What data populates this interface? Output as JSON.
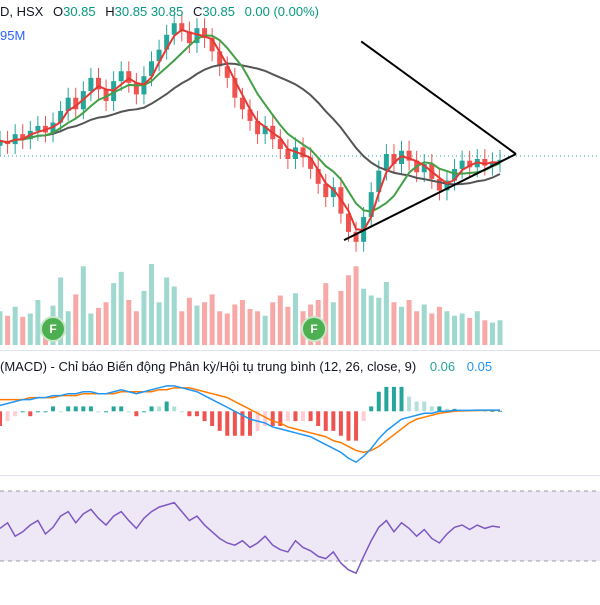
{
  "header": {
    "symbol_tail": "D, HSX",
    "open_label": "O",
    "open": "30.85",
    "high_label": "H",
    "high": "30.85",
    "low_value_text": "30.85",
    "close_label": "C",
    "close": "30.85",
    "change": "0.00 (0.00%)",
    "volume_tail": "95M"
  },
  "macd": {
    "title": "(MACD) - Chỉ báo Biến động Phân kỳ/Hội tụ trung bình (12, 26, close, 9)",
    "value1": "0.06",
    "value2": "0.05"
  },
  "badges": {
    "label": "F"
  },
  "colors": {
    "up": "#26a69a",
    "down": "#ef5350",
    "ma_fast": "#e53935",
    "ma_mid": "#43a047",
    "ma_slow": "#555555",
    "macd_line": "#2196f3",
    "signal_line": "#ff7b00",
    "rsi": "#7e57c2",
    "rsi_band": "#ede7f6",
    "trendline": "#000000"
  },
  "chart_data": {
    "type": "candlestick",
    "close": [
      32.0,
      31.8,
      32.4,
      32.1,
      32.6,
      32.9,
      32.5,
      33.1,
      33.8,
      34.6,
      33.9,
      35.0,
      35.8,
      35.1,
      34.4,
      35.6,
      36.2,
      35.5,
      34.8,
      35.9,
      36.8,
      37.5,
      38.4,
      39.1,
      38.6,
      37.9,
      38.8,
      38.2,
      37.4,
      36.5,
      35.8,
      34.6,
      33.9,
      33.2,
      32.4,
      32.9,
      32.1,
      31.5,
      30.9,
      31.6,
      31.0,
      30.3,
      29.4,
      28.6,
      29.2,
      27.6,
      26.5,
      25.9,
      27.4,
      28.9,
      30.2,
      31.2,
      30.6,
      31.4,
      30.8,
      30.1,
      30.6,
      29.7,
      29.0,
      29.6,
      30.3,
      30.8,
      30.4,
      30.9,
      30.5,
      30.7,
      30.85
    ],
    "volume_scale": "relative",
    "volume": [
      30,
      26,
      34,
      25,
      28,
      40,
      22,
      35,
      60,
      30,
      45,
      70,
      28,
      33,
      38,
      55,
      65,
      40,
      30,
      48,
      72,
      38,
      60,
      52,
      30,
      42,
      35,
      38,
      45,
      30,
      28,
      36,
      40,
      32,
      30,
      26,
      38,
      44,
      34,
      46,
      30,
      36,
      40,
      55,
      38,
      48,
      62,
      70,
      50,
      44,
      42,
      56,
      38,
      34,
      40,
      30,
      36,
      28,
      34,
      30,
      26,
      28,
      24,
      30,
      22,
      20,
      22
    ],
    "macd": [
      0.3,
      0.4,
      0.5,
      0.6,
      0.6,
      0.7,
      0.7,
      0.8,
      0.8,
      0.9,
      0.9,
      1.0,
      1.0,
      0.9,
      0.9,
      1.0,
      1.1,
      1.0,
      0.9,
      1.0,
      1.1,
      1.2,
      1.3,
      1.3,
      1.2,
      1.1,
      1.0,
      0.8,
      0.6,
      0.4,
      0.2,
      0.0,
      -0.2,
      -0.4,
      -0.5,
      -0.6,
      -0.8,
      -0.9,
      -1.0,
      -1.1,
      -1.2,
      -1.3,
      -1.5,
      -1.7,
      -1.9,
      -2.1,
      -2.4,
      -2.6,
      -2.3,
      -1.9,
      -1.4,
      -1.0,
      -0.7,
      -0.4,
      -0.3,
      -0.2,
      -0.1,
      -0.1,
      0.0,
      0.0,
      0.05,
      0.05,
      0.05,
      0.06,
      0.06,
      0.06,
      0.06
    ],
    "signal": [
      0.6,
      0.6,
      0.6,
      0.6,
      0.7,
      0.7,
      0.7,
      0.7,
      0.8,
      0.8,
      0.8,
      0.9,
      0.9,
      0.9,
      0.9,
      0.9,
      1.0,
      1.0,
      1.0,
      1.0,
      1.0,
      1.1,
      1.1,
      1.2,
      1.2,
      1.2,
      1.1,
      1.0,
      0.9,
      0.8,
      0.7,
      0.5,
      0.3,
      0.1,
      -0.1,
      -0.3,
      -0.5,
      -0.6,
      -0.8,
      -0.9,
      -1.0,
      -1.1,
      -1.2,
      -1.3,
      -1.5,
      -1.6,
      -1.8,
      -2.0,
      -2.1,
      -2.0,
      -1.8,
      -1.5,
      -1.2,
      -0.9,
      -0.6,
      -0.4,
      -0.3,
      -0.2,
      -0.1,
      -0.05,
      0.0,
      0.02,
      0.03,
      0.04,
      0.05,
      0.05,
      0.05
    ],
    "rsi": [
      55,
      60,
      48,
      52,
      58,
      62,
      50,
      56,
      66,
      70,
      60,
      68,
      72,
      64,
      58,
      66,
      70,
      62,
      55,
      64,
      70,
      74,
      76,
      78,
      70,
      62,
      66,
      58,
      52,
      46,
      42,
      40,
      44,
      38,
      42,
      48,
      40,
      36,
      34,
      44,
      38,
      35,
      30,
      28,
      34,
      24,
      18,
      15,
      30,
      44,
      56,
      62,
      52,
      60,
      55,
      48,
      54,
      46,
      42,
      50,
      56,
      58,
      54,
      58,
      55,
      57,
      56
    ],
    "annotations": [
      "symmetrical triangle"
    ]
  }
}
